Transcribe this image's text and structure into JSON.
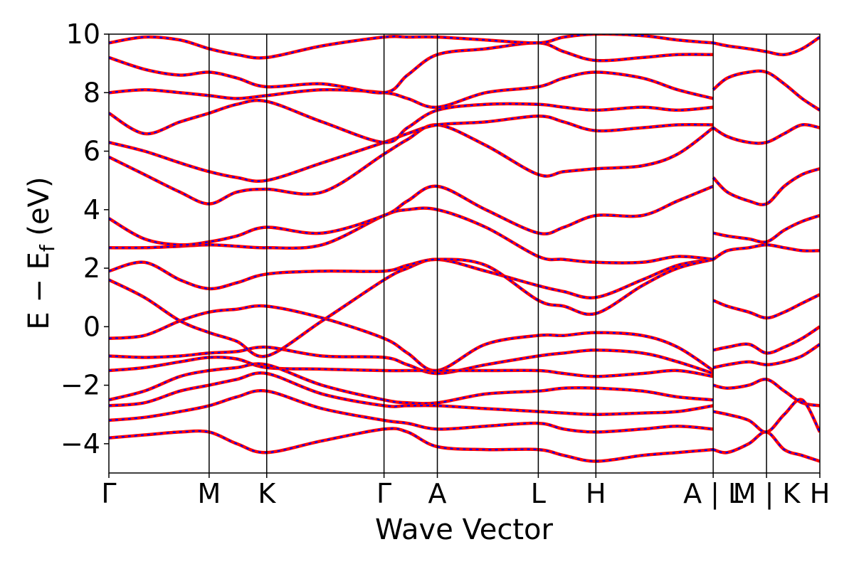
{
  "chart_data": {
    "type": "line",
    "title": "",
    "xlabel": "Wave Vector",
    "ylabel": {
      "main": "E − E",
      "sub": "f",
      "unit": " (eV)"
    },
    "ylim": [
      -5,
      10
    ],
    "yticks": [
      {
        "value": -4,
        "label": "−4"
      },
      {
        "value": -2,
        "label": "−2"
      },
      {
        "value": 0,
        "label": "0"
      },
      {
        "value": 2,
        "label": "2"
      },
      {
        "value": 4,
        "label": "4"
      },
      {
        "value": 6,
        "label": "6"
      },
      {
        "value": 8,
        "label": "8"
      },
      {
        "value": 10,
        "label": "10"
      }
    ],
    "xlim": [
      0,
      1
    ],
    "kpoints": [
      {
        "k": 0.0,
        "label": "Γ"
      },
      {
        "k": 0.141,
        "label": "M"
      },
      {
        "k": 0.222,
        "label": "K"
      },
      {
        "k": 0.387,
        "label": "Γ"
      },
      {
        "k": 0.462,
        "label": "A"
      },
      {
        "k": 0.604,
        "label": "L"
      },
      {
        "k": 0.685,
        "label": "H"
      },
      {
        "k": 0.85,
        "label": "A | L"
      },
      {
        "k": 0.925,
        "label": "M | K"
      },
      {
        "k": 1.0,
        "label": "H"
      }
    ],
    "line_colors": {
      "reference": "#ff0000",
      "overlay": "#0000ff"
    },
    "line_styles": {
      "reference": "solid",
      "overlay": "dashed"
    },
    "grid": false,
    "legend": "none",
    "series": [
      {
        "x": [
          0,
          0.05,
          0.1,
          0.141,
          0.18,
          0.222,
          0.3,
          0.387,
          0.42,
          0.462,
          0.53,
          0.604,
          0.64,
          0.685,
          0.75,
          0.8,
          0.85
        ],
        "y": [
          -0.4,
          -0.3,
          0.2,
          0.5,
          0.6,
          0.7,
          0.3,
          -0.4,
          -0.9,
          -1.5,
          -0.6,
          -0.3,
          -0.3,
          -0.2,
          -0.3,
          -0.7,
          -1.5
        ]
      },
      {
        "x": [
          0,
          0.05,
          0.1,
          0.141,
          0.18,
          0.222,
          0.3,
          0.387,
          0.42,
          0.462,
          0.53,
          0.604,
          0.64,
          0.685,
          0.75,
          0.8,
          0.85
        ],
        "y": [
          -1.0,
          -1.05,
          -1.0,
          -0.9,
          -0.85,
          -0.7,
          -1.0,
          -1.05,
          -1.3,
          -1.6,
          -1.3,
          -1.0,
          -0.9,
          -0.8,
          -0.9,
          -1.2,
          -1.6
        ]
      },
      {
        "x": [
          0,
          0.05,
          0.1,
          0.141,
          0.18,
          0.222,
          0.3,
          0.387,
          0.42,
          0.462,
          0.53,
          0.604,
          0.64,
          0.685,
          0.75,
          0.8,
          0.85
        ],
        "y": [
          -1.5,
          -1.4,
          -1.2,
          -1.05,
          -1.1,
          -1.4,
          -1.45,
          -1.5,
          -1.5,
          -1.5,
          -1.5,
          -1.5,
          -1.6,
          -1.7,
          -1.6,
          -1.5,
          -1.7
        ]
      },
      {
        "x": [
          0,
          0.05,
          0.1,
          0.141,
          0.18,
          0.222,
          0.3,
          0.387,
          0.42,
          0.462,
          0.53,
          0.604,
          0.64,
          0.685,
          0.75,
          0.8,
          0.85
        ],
        "y": [
          -2.5,
          -2.2,
          -1.7,
          -1.5,
          -1.4,
          -1.3,
          -2.0,
          -2.5,
          -2.6,
          -2.6,
          -2.3,
          -2.2,
          -2.1,
          -2.1,
          -2.2,
          -2.4,
          -2.5
        ]
      },
      {
        "x": [
          0,
          0.05,
          0.1,
          0.141,
          0.18,
          0.222,
          0.3,
          0.387,
          0.42,
          0.462,
          0.53,
          0.604,
          0.64,
          0.685,
          0.75,
          0.8,
          0.85
        ],
        "y": [
          -2.7,
          -2.6,
          -2.2,
          -2.0,
          -1.8,
          -1.6,
          -2.3,
          -2.7,
          -2.7,
          -2.7,
          -2.8,
          -2.9,
          -2.95,
          -3.0,
          -2.95,
          -2.9,
          -2.7
        ]
      },
      {
        "x": [
          0,
          0.05,
          0.1,
          0.141,
          0.18,
          0.222,
          0.3,
          0.387,
          0.42,
          0.462,
          0.53,
          0.604,
          0.64,
          0.685,
          0.75,
          0.8,
          0.85
        ],
        "y": [
          -3.2,
          -3.1,
          -2.9,
          -2.7,
          -2.4,
          -2.2,
          -2.8,
          -3.2,
          -3.3,
          -3.5,
          -3.4,
          -3.3,
          -3.5,
          -3.6,
          -3.5,
          -3.4,
          -3.5
        ]
      },
      {
        "x": [
          0,
          0.05,
          0.1,
          0.141,
          0.18,
          0.222,
          0.3,
          0.387,
          0.42,
          0.462,
          0.53,
          0.604,
          0.64,
          0.685,
          0.75,
          0.8,
          0.85
        ],
        "y": [
          -3.8,
          -3.7,
          -3.6,
          -3.6,
          -4.0,
          -4.3,
          -3.9,
          -3.5,
          -3.6,
          -4.1,
          -4.2,
          -4.2,
          -4.4,
          -4.6,
          -4.4,
          -4.3,
          -4.2
        ]
      },
      {
        "x": [
          0,
          0.05,
          0.1,
          0.141,
          0.18,
          0.222,
          0.3,
          0.387,
          0.42,
          0.462,
          0.53,
          0.604,
          0.64,
          0.685,
          0.75,
          0.8,
          0.85
        ],
        "y": [
          1.6,
          1.0,
          0.2,
          -0.2,
          -0.5,
          -1.0,
          0.2,
          1.6,
          2.0,
          2.3,
          1.9,
          1.4,
          1.2,
          1.0,
          1.6,
          2.1,
          2.3
        ]
      },
      {
        "x": [
          0,
          0.05,
          0.1,
          0.141,
          0.18,
          0.222,
          0.3,
          0.387,
          0.42,
          0.462,
          0.53,
          0.604,
          0.64,
          0.685,
          0.75,
          0.8,
          0.85
        ],
        "y": [
          1.9,
          2.2,
          1.6,
          1.3,
          1.5,
          1.8,
          1.9,
          1.9,
          2.1,
          2.3,
          2.1,
          0.9,
          0.7,
          0.45,
          1.4,
          2.0,
          2.3
        ]
      },
      {
        "x": [
          0,
          0.05,
          0.1,
          0.141,
          0.18,
          0.222,
          0.3,
          0.387,
          0.42,
          0.462,
          0.53,
          0.604,
          0.64,
          0.685,
          0.75,
          0.8,
          0.85
        ],
        "y": [
          2.7,
          2.7,
          2.75,
          2.8,
          2.75,
          2.7,
          2.8,
          3.8,
          4.0,
          4.0,
          3.4,
          2.4,
          2.3,
          2.2,
          2.2,
          2.4,
          2.3
        ]
      },
      {
        "x": [
          0,
          0.05,
          0.1,
          0.141,
          0.18,
          0.222,
          0.3,
          0.387,
          0.42,
          0.462,
          0.53,
          0.604,
          0.64,
          0.685,
          0.75,
          0.8,
          0.85
        ],
        "y": [
          3.7,
          3.0,
          2.8,
          2.9,
          3.1,
          3.4,
          3.2,
          3.8,
          4.3,
          4.8,
          4.0,
          3.2,
          3.4,
          3.8,
          3.8,
          4.3,
          4.8
        ]
      },
      {
        "x": [
          0,
          0.05,
          0.1,
          0.141,
          0.18,
          0.222,
          0.3,
          0.387,
          0.42,
          0.462,
          0.53,
          0.604,
          0.64,
          0.685,
          0.75,
          0.8,
          0.85
        ],
        "y": [
          5.8,
          5.2,
          4.6,
          4.2,
          4.6,
          4.7,
          4.6,
          5.9,
          6.4,
          6.9,
          6.2,
          5.2,
          5.3,
          5.4,
          5.5,
          5.9,
          6.8
        ]
      },
      {
        "x": [
          0,
          0.05,
          0.1,
          0.141,
          0.18,
          0.222,
          0.3,
          0.387,
          0.42,
          0.462,
          0.53,
          0.604,
          0.64,
          0.685,
          0.75,
          0.8,
          0.85
        ],
        "y": [
          6.3,
          6.0,
          5.6,
          5.3,
          5.1,
          5.0,
          5.6,
          6.3,
          6.6,
          6.9,
          7.0,
          7.2,
          7.0,
          6.7,
          6.8,
          6.9,
          6.9
        ]
      },
      {
        "x": [
          0,
          0.05,
          0.1,
          0.141,
          0.18,
          0.222,
          0.3,
          0.387,
          0.42,
          0.462,
          0.53,
          0.604,
          0.64,
          0.685,
          0.75,
          0.8,
          0.85
        ],
        "y": [
          7.3,
          6.6,
          7.0,
          7.3,
          7.6,
          7.7,
          7.0,
          6.3,
          6.8,
          7.4,
          7.6,
          7.6,
          7.5,
          7.4,
          7.5,
          7.4,
          7.5
        ]
      },
      {
        "x": [
          0,
          0.05,
          0.1,
          0.141,
          0.18,
          0.222,
          0.3,
          0.387,
          0.42,
          0.462,
          0.53,
          0.604,
          0.64,
          0.685,
          0.75,
          0.8,
          0.85
        ],
        "y": [
          8.0,
          8.1,
          8.0,
          7.9,
          7.8,
          7.9,
          8.1,
          8.0,
          7.8,
          7.5,
          8.0,
          8.2,
          8.5,
          8.7,
          8.5,
          8.1,
          7.8
        ]
      },
      {
        "x": [
          0,
          0.05,
          0.1,
          0.141,
          0.18,
          0.222,
          0.3,
          0.387,
          0.42,
          0.462,
          0.53,
          0.604,
          0.64,
          0.685,
          0.75,
          0.8,
          0.85
        ],
        "y": [
          9.2,
          8.8,
          8.6,
          8.7,
          8.5,
          8.2,
          8.3,
          8.0,
          8.6,
          9.3,
          9.5,
          9.7,
          9.4,
          9.1,
          9.2,
          9.3,
          9.3
        ]
      },
      {
        "x": [
          0,
          0.05,
          0.1,
          0.141,
          0.18,
          0.222,
          0.3,
          0.387,
          0.42,
          0.462,
          0.53,
          0.604,
          0.64,
          0.685,
          0.75,
          0.8,
          0.85
        ],
        "y": [
          9.7,
          9.9,
          9.8,
          9.5,
          9.3,
          9.2,
          9.6,
          9.9,
          9.9,
          9.9,
          9.8,
          9.7,
          9.9,
          10.0,
          9.95,
          9.8,
          9.7
        ]
      },
      {
        "x": [
          0.85,
          0.87,
          0.9,
          0.925,
          0.95,
          0.975,
          1.0
        ],
        "y": [
          -0.8,
          -0.7,
          -0.6,
          -0.9,
          -0.7,
          -0.4,
          0.0
        ]
      },
      {
        "x": [
          0.85,
          0.87,
          0.9,
          0.925,
          0.95,
          0.975,
          1.0
        ],
        "y": [
          -1.4,
          -1.3,
          -1.2,
          -1.3,
          -1.2,
          -1.0,
          -0.6
        ]
      },
      {
        "x": [
          0.85,
          0.87,
          0.9,
          0.925,
          0.95,
          0.975,
          1.0
        ],
        "y": [
          -2.0,
          -2.1,
          -2.0,
          -1.8,
          -2.2,
          -2.6,
          -2.7
        ]
      },
      {
        "x": [
          0.85,
          0.87,
          0.9,
          0.925,
          0.95,
          0.975,
          1.0
        ],
        "y": [
          -2.9,
          -3.0,
          -3.2,
          -3.6,
          -3.0,
          -2.5,
          -3.6
        ]
      },
      {
        "x": [
          0.85,
          0.87,
          0.9,
          0.925,
          0.95,
          0.975,
          1.0
        ],
        "y": [
          -4.2,
          -4.3,
          -4.0,
          -3.6,
          -4.2,
          -4.4,
          -4.6
        ]
      },
      {
        "x": [
          0.85,
          0.87,
          0.9,
          0.925,
          0.95,
          0.975,
          1.0
        ],
        "y": [
          0.9,
          0.7,
          0.5,
          0.3,
          0.5,
          0.8,
          1.1
        ]
      },
      {
        "x": [
          0.85,
          0.87,
          0.9,
          0.925,
          0.95,
          0.975,
          1.0
        ],
        "y": [
          2.3,
          2.6,
          2.7,
          2.8,
          2.7,
          2.6,
          2.6
        ]
      },
      {
        "x": [
          0.85,
          0.87,
          0.9,
          0.925,
          0.95,
          0.975,
          1.0
        ],
        "y": [
          3.2,
          3.1,
          3.0,
          2.9,
          3.3,
          3.6,
          3.8
        ]
      },
      {
        "x": [
          0.85,
          0.87,
          0.9,
          0.925,
          0.95,
          0.975,
          1.0
        ],
        "y": [
          5.1,
          4.6,
          4.3,
          4.2,
          4.8,
          5.2,
          5.4
        ]
      },
      {
        "x": [
          0.85,
          0.87,
          0.9,
          0.925,
          0.95,
          0.975,
          1.0
        ],
        "y": [
          6.8,
          6.5,
          6.3,
          6.3,
          6.6,
          6.9,
          6.8
        ]
      },
      {
        "x": [
          0.85,
          0.87,
          0.9,
          0.925,
          0.95,
          0.975,
          1.0
        ],
        "y": [
          8.1,
          8.5,
          8.7,
          8.7,
          8.3,
          7.8,
          7.4
        ]
      },
      {
        "x": [
          0.85,
          0.87,
          0.9,
          0.925,
          0.95,
          0.975,
          1.0
        ],
        "y": [
          9.7,
          9.6,
          9.5,
          9.4,
          9.3,
          9.5,
          9.9
        ]
      }
    ]
  }
}
